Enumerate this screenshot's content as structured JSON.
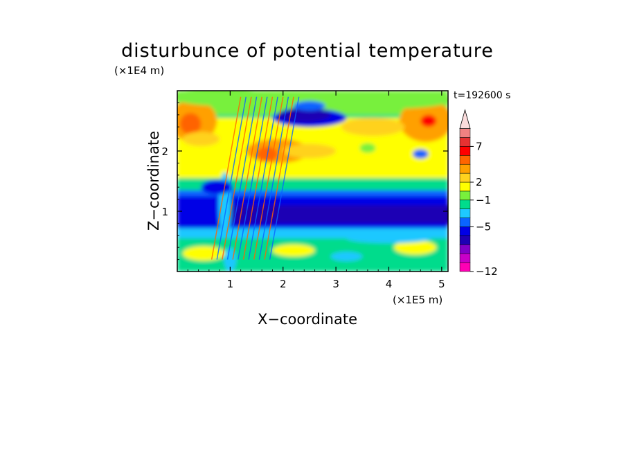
{
  "chart_data": {
    "type": "heatmap",
    "title": "disturbunce of potential temperature",
    "time_label": "t=192600 s",
    "xlabel": "X−coordinate",
    "ylabel": "Z−coordinate",
    "x_multiplier": "(×1E5 m)",
    "y_multiplier": "(×1E4 m)",
    "xlim": [
      0,
      5.12
    ],
    "ylim": [
      0,
      3.0
    ],
    "x_ticks": [
      {
        "value": 1,
        "label": "1"
      },
      {
        "value": 2,
        "label": "2"
      },
      {
        "value": 3,
        "label": "3"
      },
      {
        "value": 4,
        "label": "4"
      },
      {
        "value": 5,
        "label": "5"
      }
    ],
    "y_ticks": [
      {
        "value": 1,
        "label": "1"
      },
      {
        "value": 2,
        "label": "2"
      }
    ],
    "colorbar": {
      "colors": [
        "#ff00b4",
        "#c800c8",
        "#8200c8",
        "#1e00b4",
        "#0000e6",
        "#0a64ff",
        "#1ec8ff",
        "#00dc8c",
        "#78f03c",
        "#ffff00",
        "#ffd21e",
        "#ffa000",
        "#ff6400",
        "#ff0000",
        "#e63232",
        "#f08282",
        "#fadcdc"
      ],
      "tick_labels": [
        {
          "level": 1,
          "label": "−12"
        },
        {
          "level": 6,
          "label": "−5"
        },
        {
          "level": 9,
          "label": "−1"
        },
        {
          "level": 11,
          "label": "2"
        },
        {
          "level": 15,
          "label": "7"
        }
      ]
    }
  }
}
